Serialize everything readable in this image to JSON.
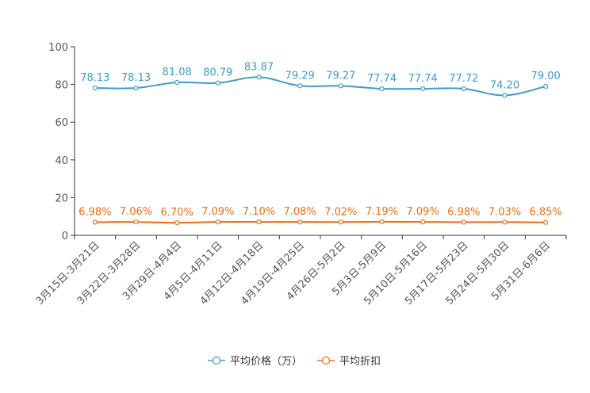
{
  "chart_data": {
    "type": "line",
    "categories": [
      "3月15日-3月21日",
      "3月22日-3月28日",
      "3月29日-4月4日",
      "4月5日-4月11日",
      "4月12日-4月18日",
      "4月19日-4月25日",
      "4月26日-5月2日",
      "5月3日-5月9日",
      "5月10日-5月16日",
      "5月17日-5月23日",
      "5月24日-5月30日",
      "5月31日-6月6日"
    ],
    "ylim": [
      0,
      100
    ],
    "yticks": [
      "0",
      "20",
      "40",
      "60",
      "80",
      "100"
    ],
    "series": [
      {
        "name": "平均价格（万）",
        "color": "#3d9ccc",
        "values": [
          78.13,
          78.13,
          81.08,
          80.79,
          83.87,
          79.29,
          79.27,
          77.74,
          77.74,
          77.72,
          74.2,
          79.0
        ],
        "labels": [
          "78.13",
          "78.13",
          "81.08",
          "80.79",
          "83.87",
          "79.29",
          "79.27",
          "77.74",
          "77.74",
          "77.72",
          "74.20",
          "79.00"
        ]
      },
      {
        "name": "平均折扣",
        "color": "#ee6e10",
        "values": [
          6.98,
          7.06,
          6.7,
          7.09,
          7.1,
          7.08,
          7.02,
          7.19,
          7.09,
          6.98,
          7.03,
          6.85
        ],
        "labels": [
          "6.98%",
          "7.06%",
          "6.70%",
          "7.09%",
          "7.10%",
          "7.08%",
          "7.02%",
          "7.19%",
          "7.09%",
          "6.98%",
          "7.03%",
          "6.85%"
        ]
      }
    ],
    "legend": {
      "position": "bottom-center",
      "items": [
        "平均价格（万）",
        "平均折扣"
      ]
    },
    "axis_color": "#333333"
  }
}
